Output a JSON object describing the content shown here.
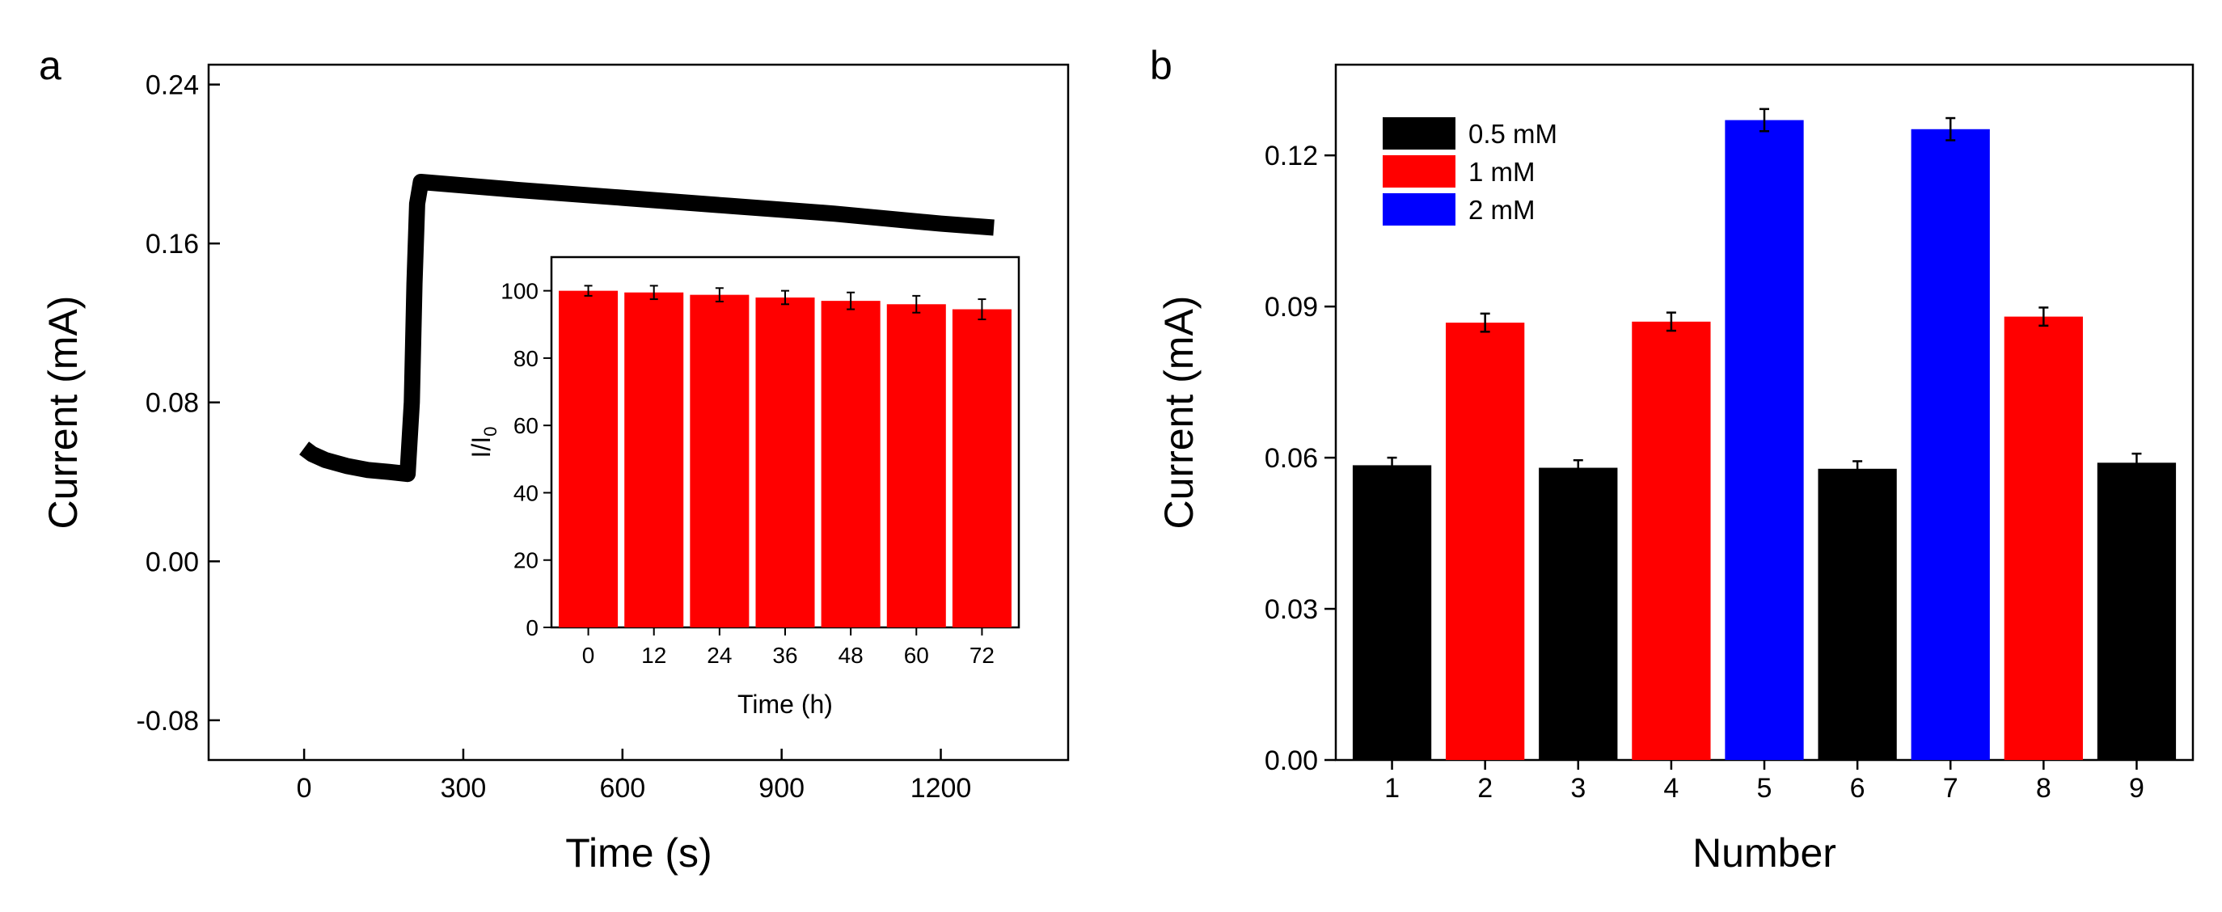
{
  "colors": {
    "axis": "#000000",
    "trace": "#000000",
    "bar_red": "#ff0000",
    "bar_black": "#000000",
    "bar_blue": "#0000ff"
  },
  "chart_data": [
    {
      "panel": "a",
      "type": "line",
      "title": "",
      "xlabel": "Time (s)",
      "ylabel": "Current (mA)",
      "xlim": [
        -180,
        1440
      ],
      "ylim": [
        -0.1,
        0.25
      ],
      "xticks": [
        0,
        300,
        600,
        900,
        1200
      ],
      "xtick_labels": [
        "0",
        "300",
        "600",
        "900",
        "1200"
      ],
      "yticks": [
        -0.08,
        0,
        0.08,
        0.16,
        0.24
      ],
      "ytick_labels": [
        "-0.08",
        "0.00",
        "0.08",
        "0.16",
        "0.24"
      ],
      "series": [
        {
          "name": "current",
          "x": [
            0,
            15,
            40,
            80,
            120,
            160,
            195,
            203,
            208,
            213,
            220,
            400,
            600,
            800,
            1000,
            1200,
            1300
          ],
          "y": [
            0.057,
            0.054,
            0.051,
            0.048,
            0.046,
            0.045,
            0.044,
            0.08,
            0.14,
            0.18,
            0.191,
            0.187,
            0.183,
            0.179,
            0.175,
            0.17,
            0.168
          ]
        }
      ],
      "inset": {
        "type": "bar",
        "xlabel": "Time (h)",
        "ylabel_main": "I/I",
        "ylabel_sub": "0",
        "ylim": [
          0,
          110
        ],
        "yticks": [
          0,
          20,
          40,
          60,
          80,
          100
        ],
        "ytick_labels": [
          "0",
          "20",
          "40",
          "60",
          "80",
          "100"
        ],
        "categories": [
          "0",
          "12",
          "24",
          "36",
          "48",
          "60",
          "72"
        ],
        "values": [
          100,
          99.5,
          98.8,
          98.0,
          97.0,
          96.0,
          94.5
        ],
        "errors": [
          1.5,
          2.0,
          2.0,
          2.0,
          2.5,
          2.5,
          3.0
        ],
        "color": "#ff0000"
      }
    },
    {
      "panel": "b",
      "type": "bar",
      "title": "",
      "xlabel": "Number",
      "ylabel": "Current (mA)",
      "ylim": [
        0,
        0.138
      ],
      "yticks": [
        0,
        0.03,
        0.06,
        0.09,
        0.12
      ],
      "ytick_labels": [
        "0.00",
        "0.03",
        "0.06",
        "0.09",
        "0.12"
      ],
      "categories": [
        "1",
        "2",
        "3",
        "4",
        "5",
        "6",
        "7",
        "8",
        "9"
      ],
      "values": [
        0.0585,
        0.0868,
        0.058,
        0.087,
        0.127,
        0.0578,
        0.1252,
        0.088,
        0.059
      ],
      "errors": [
        0.0015,
        0.0018,
        0.0015,
        0.0018,
        0.0022,
        0.0015,
        0.0022,
        0.0018,
        0.0018
      ],
      "groups": [
        "0.5 mM",
        "1 mM",
        "0.5 mM",
        "1 mM",
        "2 mM",
        "0.5 mM",
        "2 mM",
        "1 mM",
        "0.5 mM"
      ],
      "legend": [
        {
          "label": "0.5 mM",
          "color": "#000000"
        },
        {
          "label": "1 mM",
          "color": "#ff0000"
        },
        {
          "label": "2 mM",
          "color": "#0000ff"
        }
      ],
      "legend_position": "top-left"
    }
  ]
}
